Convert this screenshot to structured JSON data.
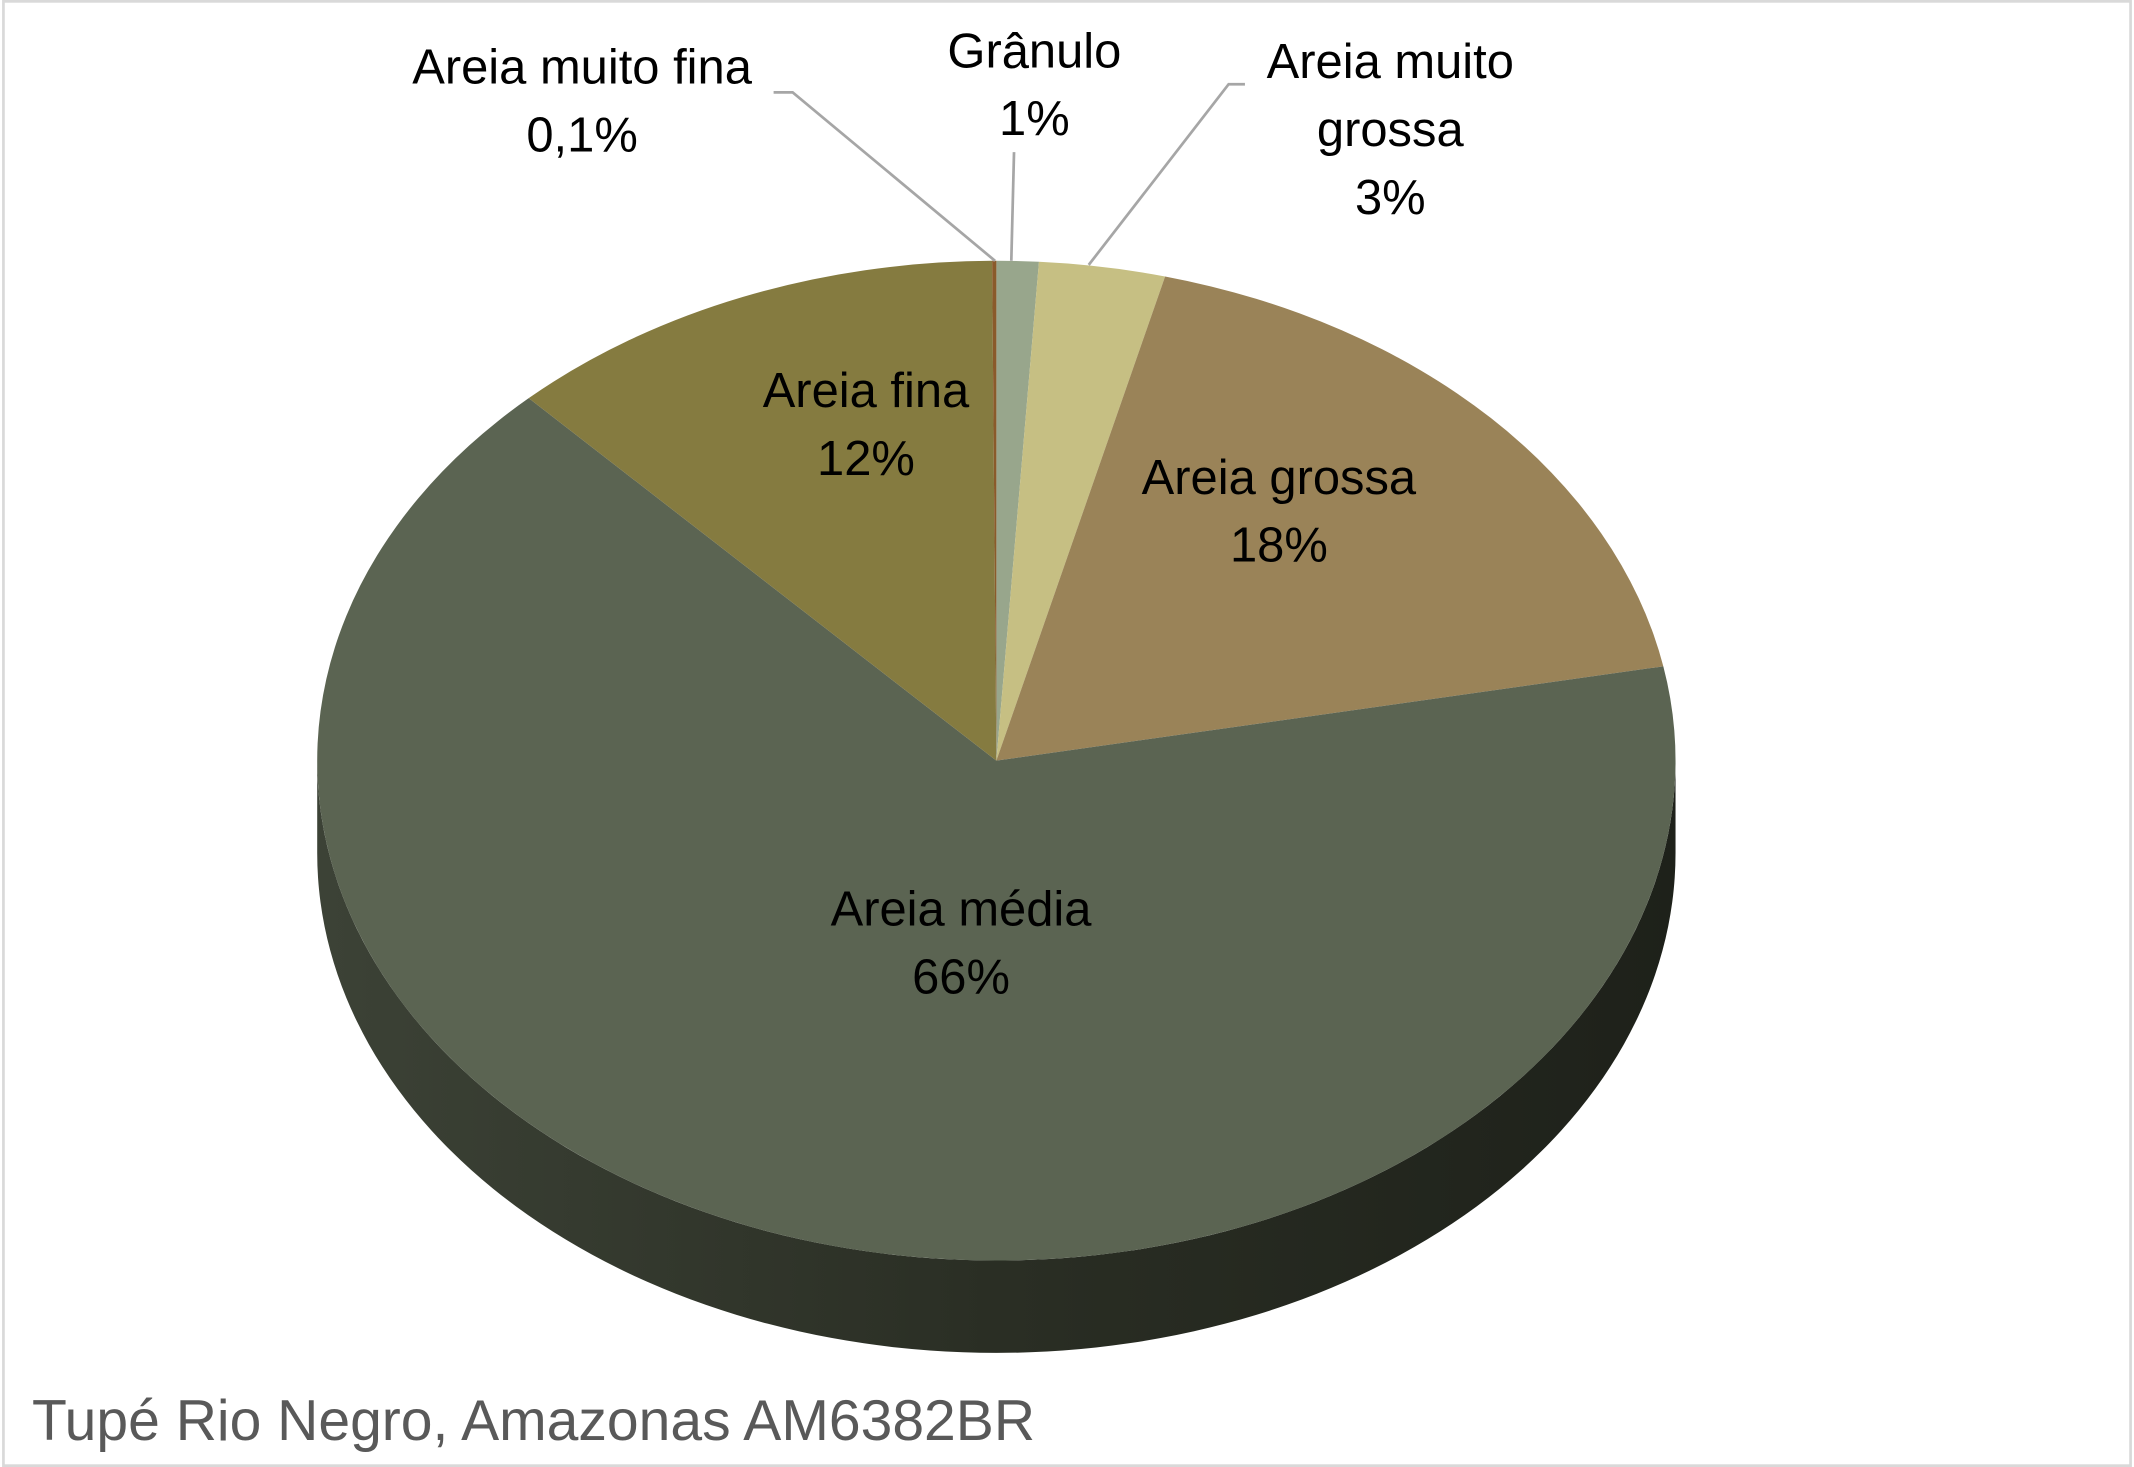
{
  "chart_data": {
    "type": "pie",
    "title": "Tupé Rio Negro, Amazonas AM6382BR",
    "categories": [
      "Grânulo",
      "Areia muito grossa",
      "Areia grossa",
      "Areia média",
      "Areia fina",
      "Areia muito fina"
    ],
    "values": [
      1,
      3,
      18,
      66,
      12,
      0.1
    ],
    "value_labels": [
      "1%",
      "3%",
      "18%",
      "66%",
      "12%",
      "0,1%"
    ],
    "colors": [
      "#98a68c",
      "#c6bf83",
      "#9a8358",
      "#5b6452",
      "#857b40",
      "#8a5a2a"
    ]
  }
}
